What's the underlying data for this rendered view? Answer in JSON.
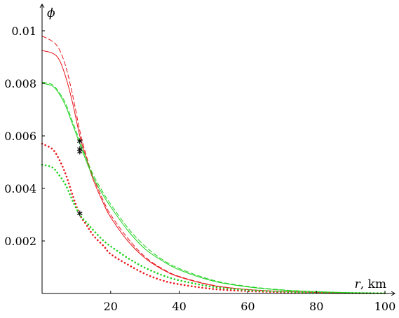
{
  "chart_data": {
    "type": "line",
    "title": "",
    "xlabel": {
      "symbol": "r",
      "unit": ", km"
    },
    "ylabel": {
      "symbol": "ϕ"
    },
    "xlim": [
      0,
      100
    ],
    "ylim": [
      0,
      0.0108
    ],
    "x_ticks": [
      20,
      40,
      60,
      80,
      100
    ],
    "x_tick_labels": [
      "20",
      "40",
      "60",
      "80",
      "100"
    ],
    "y_ticks": [
      0.002,
      0.004,
      0.006,
      0.008,
      0.01
    ],
    "y_tick_labels": [
      "0.002",
      "0.004",
      "0.006",
      "0.008",
      "0.01"
    ],
    "grid": false,
    "legend": "none",
    "series": [
      {
        "color": "#e8141b",
        "style": "solid",
        "points": [
          [
            0,
            0.00925
          ],
          [
            3,
            0.00915
          ],
          [
            5,
            0.0089
          ],
          [
            7,
            0.0082
          ],
          [
            9,
            0.0072
          ],
          [
            11,
            0.006
          ],
          [
            13,
            0.0051
          ],
          [
            15,
            0.0043
          ],
          [
            18,
            0.0034
          ],
          [
            20,
            0.0029
          ],
          [
            25,
            0.002
          ],
          [
            30,
            0.00135
          ],
          [
            35,
            0.00092
          ],
          [
            40,
            0.00063
          ],
          [
            50,
            0.0003
          ],
          [
            60,
            0.00015
          ],
          [
            70,
            8e-05
          ],
          [
            80,
            4e-05
          ],
          [
            90,
            2e-05
          ],
          [
            100,
            1e-05
          ]
        ]
      },
      {
        "color": "#e8141b",
        "style": "dashed",
        "points": [
          [
            0,
            0.0098
          ],
          [
            3,
            0.0096
          ],
          [
            5,
            0.0093
          ],
          [
            7,
            0.0086
          ],
          [
            9,
            0.0075
          ],
          [
            11,
            0.0062
          ],
          [
            13,
            0.0052
          ],
          [
            15,
            0.0044
          ],
          [
            18,
            0.0035
          ],
          [
            20,
            0.003
          ],
          [
            25,
            0.0021
          ],
          [
            30,
            0.0014
          ],
          [
            35,
            0.00095
          ],
          [
            40,
            0.00065
          ],
          [
            50,
            0.00031
          ],
          [
            60,
            0.00015
          ],
          [
            70,
            8e-05
          ],
          [
            80,
            4e-05
          ],
          [
            90,
            2e-05
          ],
          [
            100,
            1e-05
          ]
        ]
      },
      {
        "color": "#1fd21f",
        "style": "solid",
        "points": [
          [
            0,
            0.008
          ],
          [
            3,
            0.0079
          ],
          [
            5,
            0.0076
          ],
          [
            7,
            0.0071
          ],
          [
            9,
            0.0064
          ],
          [
            11,
            0.0057
          ],
          [
            13,
            0.005
          ],
          [
            15,
            0.0044
          ],
          [
            18,
            0.0037
          ],
          [
            20,
            0.0033
          ],
          [
            25,
            0.0024
          ],
          [
            30,
            0.0017
          ],
          [
            35,
            0.00125
          ],
          [
            40,
            0.0009
          ],
          [
            50,
            0.00047
          ],
          [
            60,
            0.00025
          ],
          [
            70,
            0.00013
          ],
          [
            80,
            7e-05
          ],
          [
            90,
            3e-05
          ],
          [
            100,
            1e-05
          ]
        ]
      },
      {
        "color": "#1fd21f",
        "style": "dashed",
        "points": [
          [
            0,
            0.00805
          ],
          [
            3,
            0.00795
          ],
          [
            5,
            0.00765
          ],
          [
            7,
            0.0072
          ],
          [
            9,
            0.0065
          ],
          [
            11,
            0.0058
          ],
          [
            13,
            0.0051
          ],
          [
            15,
            0.0045
          ],
          [
            18,
            0.0038
          ],
          [
            20,
            0.0034
          ],
          [
            25,
            0.0025
          ],
          [
            30,
            0.0018
          ],
          [
            35,
            0.0013
          ],
          [
            40,
            0.00095
          ],
          [
            50,
            0.0005
          ],
          [
            60,
            0.00027
          ],
          [
            70,
            0.00014
          ],
          [
            80,
            7e-05
          ],
          [
            90,
            3e-05
          ],
          [
            100,
            1e-05
          ]
        ]
      },
      {
        "color": "#e8141b",
        "style": "dotted",
        "points": [
          [
            0,
            0.0057
          ],
          [
            3,
            0.0055
          ],
          [
            5,
            0.0051
          ],
          [
            7,
            0.0045
          ],
          [
            9,
            0.0037
          ],
          [
            11,
            0.003
          ],
          [
            13,
            0.0026
          ],
          [
            15,
            0.0022
          ],
          [
            18,
            0.0018
          ],
          [
            20,
            0.0015
          ],
          [
            25,
            0.0011
          ],
          [
            30,
            0.00075
          ],
          [
            35,
            0.0005
          ],
          [
            40,
            0.00035
          ],
          [
            50,
            0.00017
          ],
          [
            60,
            9e-05
          ],
          [
            70,
            5e-05
          ],
          [
            80,
            3e-05
          ],
          [
            90,
            1e-05
          ],
          [
            100,
            5e-06
          ]
        ]
      },
      {
        "color": "#1fd21f",
        "style": "dotted",
        "points": [
          [
            0,
            0.0049
          ],
          [
            3,
            0.0048
          ],
          [
            5,
            0.0045
          ],
          [
            7,
            0.0041
          ],
          [
            9,
            0.0035
          ],
          [
            11,
            0.003
          ],
          [
            13,
            0.0027
          ],
          [
            15,
            0.0024
          ],
          [
            18,
            0.002
          ],
          [
            20,
            0.0018
          ],
          [
            25,
            0.00135
          ],
          [
            30,
            0.00098
          ],
          [
            35,
            0.0007
          ],
          [
            40,
            0.0005
          ],
          [
            50,
            0.00025
          ],
          [
            60,
            0.00013
          ],
          [
            70,
            7e-05
          ],
          [
            80,
            3e-05
          ],
          [
            90,
            2e-05
          ],
          [
            100,
            1e-05
          ]
        ]
      }
    ],
    "markers": [
      {
        "symbol": "*",
        "x": 11,
        "y": 0.0058
      },
      {
        "symbol": "*",
        "x": 11,
        "y": 0.0055
      },
      {
        "symbol": "*",
        "x": 11,
        "y": 0.0054
      },
      {
        "symbol": "*",
        "x": 11,
        "y": 0.00305
      }
    ]
  }
}
